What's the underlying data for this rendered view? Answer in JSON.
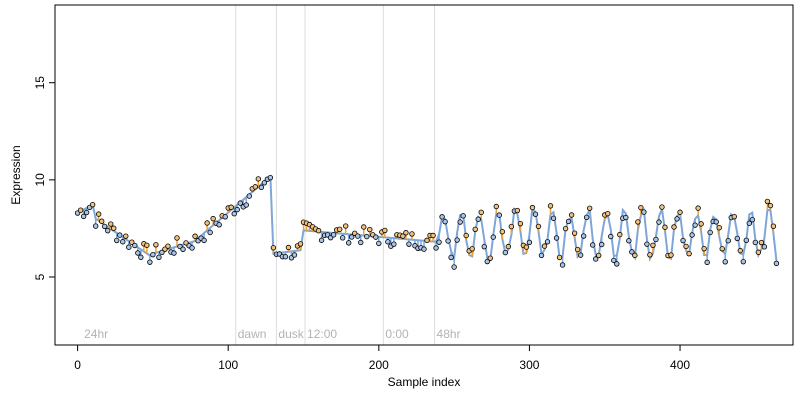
{
  "chart_data": {
    "type": "scatter",
    "title": "",
    "xlabel": "Sample index",
    "ylabel": "Expression",
    "xlim": [
      -15,
      475
    ],
    "ylim": [
      1.5,
      19
    ],
    "x_ticks": [
      "0",
      "100",
      "200",
      "300",
      "400"
    ],
    "y_ticks": [
      "5",
      "10",
      "15"
    ],
    "annotations": [
      {
        "label": "24hr",
        "x": 3
      },
      {
        "label": "dawn",
        "x": 105
      },
      {
        "label": "dusk",
        "x": 132
      },
      {
        "label": "12:00",
        "x": 151
      },
      {
        "label": "0:00",
        "x": 203
      },
      {
        "label": "48hr",
        "x": 237
      }
    ],
    "vertical_lines_x": [
      105,
      132,
      151,
      203,
      237
    ],
    "colors": {
      "observed_points": "#000000",
      "point_fill_above": "#f2c27a",
      "point_fill_below": "#a9c4e6",
      "fit_line_above": "#f0a030",
      "fit_line_below": "#7ea6d8",
      "fit_line_gray": "#9a9a9a",
      "vertical_lines": "#dddddd"
    },
    "series": [
      {
        "description_role": "observed",
        "segments": [
          {
            "x_range": [
              0,
              12
            ],
            "y_start": 8.3,
            "y_end": 8.8
          },
          {
            "x_range": [
              12,
              50
            ],
            "y_start": 8.0,
            "y_end": 6.0
          },
          {
            "x_range": [
              50,
              80
            ],
            "y_start": 6.2,
            "y_end": 6.9
          },
          {
            "x_range": [
              80,
              130
            ],
            "y_start": 7.0,
            "y_end": 10.3
          },
          {
            "x_range": [
              130,
              150
            ],
            "y_start": 6.2,
            "y_end": 6.4
          },
          {
            "x_range": [
              150,
              240
            ],
            "y_start": 7.4,
            "y_end": 6.8
          },
          {
            "x_range": [
              240,
              465
            ],
            "oscillation_mean": 7.2,
            "oscillation_amplitude": 1.2,
            "period_samples": 12
          }
        ]
      }
    ]
  }
}
